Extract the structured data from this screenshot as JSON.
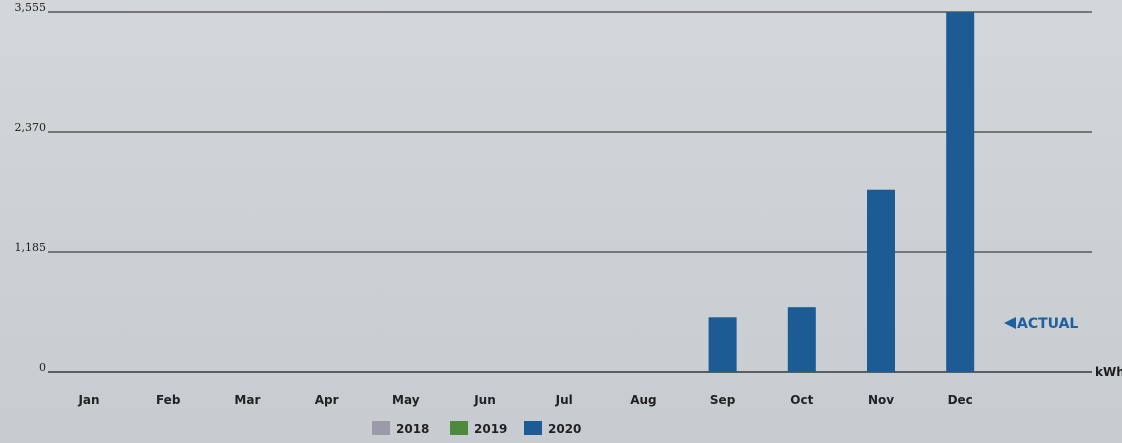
{
  "chart_data": {
    "type": "bar",
    "categories": [
      "Jan",
      "Feb",
      "Mar",
      "Apr",
      "May",
      "Jun",
      "Jul",
      "Aug",
      "Sep",
      "Oct",
      "Nov",
      "Dec"
    ],
    "series": [
      {
        "name": "2018",
        "color": "#9a9aa8",
        "values": [
          0,
          0,
          0,
          0,
          0,
          0,
          0,
          0,
          0,
          0,
          0,
          0
        ]
      },
      {
        "name": "2019",
        "color": "#4e8a3c",
        "values": [
          0,
          0,
          0,
          0,
          0,
          0,
          0,
          0,
          0,
          0,
          0,
          0
        ]
      },
      {
        "name": "2020",
        "color": "#1c5b94",
        "values": [
          0,
          0,
          0,
          0,
          0,
          0,
          0,
          0,
          540,
          640,
          1800,
          3555
        ]
      }
    ],
    "yticks": [
      0,
      1185,
      2370,
      3555
    ],
    "ytick_labels": [
      "0",
      "1,185",
      "2,370",
      "3,555"
    ],
    "ylim": [
      0,
      3555
    ],
    "ylabel": "kWh",
    "annotation": "ACTUAL",
    "legend_position": "bottom-center",
    "grid": true
  }
}
